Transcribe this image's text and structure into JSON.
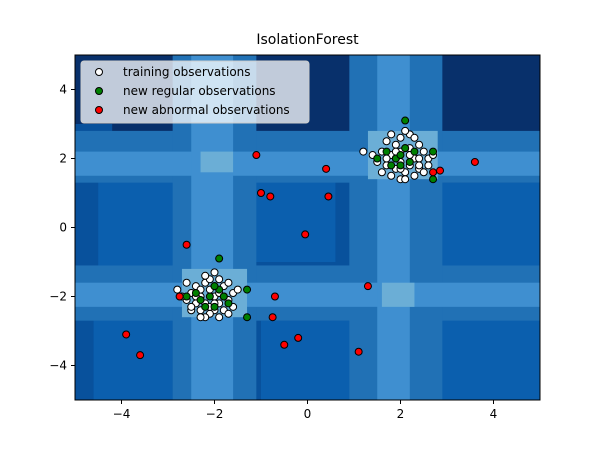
{
  "chart_data": {
    "type": "scatter",
    "title": "IsolationForest",
    "xlabel": "",
    "ylabel": "",
    "xlim": [
      -5,
      5
    ],
    "ylim": [
      -5,
      5
    ],
    "xticks": [
      -4,
      -2,
      0,
      2,
      4
    ],
    "yticks": [
      -4,
      -2,
      0,
      2,
      4
    ],
    "xtick_labels": [
      "−4",
      "−2",
      "0",
      "2",
      "4"
    ],
    "ytick_labels": [
      "−4",
      "−2",
      "0",
      "2",
      "4"
    ],
    "grid": false,
    "legend_position": "top-left",
    "background": "decision-function contour (Blues)",
    "contour_colors": [
      "#08306b",
      "#08519c",
      "#0b5fae",
      "#2171b5",
      "#3f8fd0",
      "#6baed6"
    ],
    "series": [
      {
        "name": "training observations",
        "color": "#ffffff",
        "edge": "#000000",
        "points": [
          [
            -2.3,
            -2.0
          ],
          [
            -2.1,
            -1.8
          ],
          [
            -1.9,
            -2.2
          ],
          [
            -2.0,
            -2.4
          ],
          [
            -2.2,
            -1.6
          ],
          [
            -1.8,
            -1.7
          ],
          [
            -2.4,
            -2.2
          ],
          [
            -1.7,
            -2.1
          ],
          [
            -2.5,
            -1.9
          ],
          [
            -2.0,
            -1.3
          ],
          [
            -2.1,
            -2.5
          ],
          [
            -1.6,
            -1.9
          ],
          [
            -2.3,
            -2.4
          ],
          [
            -1.9,
            -1.5
          ],
          [
            -2.6,
            -2.1
          ],
          [
            -2.2,
            -2.2
          ],
          [
            -1.8,
            -2.4
          ],
          [
            -2.4,
            -1.7
          ],
          [
            -2.0,
            -2.0
          ],
          [
            -1.7,
            -2.5
          ],
          [
            -2.7,
            -2.0
          ],
          [
            -2.1,
            -1.5
          ],
          [
            -1.9,
            -1.9
          ],
          [
            -2.3,
            -1.8
          ],
          [
            -2.2,
            -2.6
          ],
          [
            -1.6,
            -2.3
          ],
          [
            -2.5,
            -2.4
          ],
          [
            -2.0,
            -1.7
          ],
          [
            -1.8,
            -2.0
          ],
          [
            -2.4,
            -2.0
          ],
          [
            -2.1,
            -2.3
          ],
          [
            -2.8,
            -1.8
          ],
          [
            -1.5,
            -1.8
          ],
          [
            -2.2,
            -1.4
          ],
          [
            -1.9,
            -2.6
          ],
          [
            -2.6,
            -1.6
          ],
          [
            -2.0,
            -2.2
          ],
          [
            -1.7,
            -1.6
          ],
          [
            -2.3,
            -2.6
          ],
          [
            -2.5,
            -2.3
          ],
          [
            1.8,
            2.1
          ],
          [
            2.0,
            1.9
          ],
          [
            2.2,
            2.3
          ],
          [
            1.9,
            2.4
          ],
          [
            2.1,
            1.6
          ],
          [
            1.7,
            1.8
          ],
          [
            2.3,
            2.0
          ],
          [
            2.0,
            2.6
          ],
          [
            1.6,
            2.2
          ],
          [
            2.4,
            1.7
          ],
          [
            2.2,
            2.7
          ],
          [
            1.8,
            1.5
          ],
          [
            2.5,
            2.2
          ],
          [
            1.9,
            2.0
          ],
          [
            2.1,
            2.3
          ],
          [
            1.5,
            1.9
          ],
          [
            2.4,
            2.4
          ],
          [
            2.0,
            1.4
          ],
          [
            1.7,
            2.5
          ],
          [
            2.3,
            1.5
          ],
          [
            2.6,
            2.0
          ],
          [
            1.4,
            2.1
          ],
          [
            2.2,
            1.8
          ],
          [
            1.9,
            1.7
          ],
          [
            2.5,
            1.6
          ],
          [
            2.1,
            2.8
          ],
          [
            1.6,
            1.6
          ],
          [
            2.3,
            2.6
          ],
          [
            2.0,
            2.2
          ],
          [
            1.8,
            2.7
          ],
          [
            2.4,
            2.0
          ],
          [
            1.2,
            2.2
          ],
          [
            2.7,
            2.1
          ],
          [
            2.6,
            1.8
          ],
          [
            1.9,
            2.2
          ],
          [
            2.2,
            2.1
          ],
          [
            2.0,
            1.7
          ],
          [
            1.7,
            2.0
          ],
          [
            2.1,
            1.4
          ],
          [
            2.4,
            1.8
          ]
        ]
      },
      {
        "name": "new regular observations",
        "color": "#008000",
        "edge": "#000000",
        "points": [
          [
            -2.1,
            -2.0
          ],
          [
            -1.9,
            -1.8
          ],
          [
            -2.3,
            -2.1
          ],
          [
            -1.7,
            -2.2
          ],
          [
            -2.0,
            -1.7
          ],
          [
            -2.2,
            -2.3
          ],
          [
            -1.8,
            -2.0
          ],
          [
            -2.4,
            -1.9
          ],
          [
            -1.3,
            -1.8
          ],
          [
            -1.9,
            -0.9
          ],
          [
            -1.3,
            -2.6
          ],
          [
            -2.6,
            -2.0
          ],
          [
            -2.0,
            -2.3
          ],
          [
            1.9,
            2.0
          ],
          [
            2.1,
            2.3
          ],
          [
            2.2,
            1.9
          ],
          [
            1.8,
            1.8
          ],
          [
            2.0,
            2.1
          ],
          [
            1.5,
            2.0
          ],
          [
            2.3,
            2.2
          ],
          [
            2.1,
            3.1
          ],
          [
            2.7,
            2.2
          ],
          [
            2.7,
            1.4
          ],
          [
            1.7,
            2.2
          ],
          [
            2.0,
            1.8
          ]
        ]
      },
      {
        "name": "new abnormal observations",
        "color": "#ff0000",
        "edge": "#000000",
        "points": [
          [
            -1.1,
            2.1
          ],
          [
            -1.0,
            1.0
          ],
          [
            -0.8,
            0.9
          ],
          [
            0.4,
            1.7
          ],
          [
            0.45,
            0.9
          ],
          [
            -0.05,
            -0.2
          ],
          [
            -2.6,
            -0.5
          ],
          [
            -0.7,
            -2.0
          ],
          [
            -0.75,
            -2.6
          ],
          [
            -0.5,
            -3.4
          ],
          [
            -0.2,
            -3.2
          ],
          [
            -2.75,
            -2.0
          ],
          [
            -3.9,
            -3.1
          ],
          [
            -3.6,
            -3.7
          ],
          [
            1.3,
            -1.7
          ],
          [
            1.1,
            -3.6
          ],
          [
            3.6,
            1.9
          ],
          [
            2.85,
            1.65
          ],
          [
            2.7,
            1.6
          ]
        ]
      }
    ]
  }
}
